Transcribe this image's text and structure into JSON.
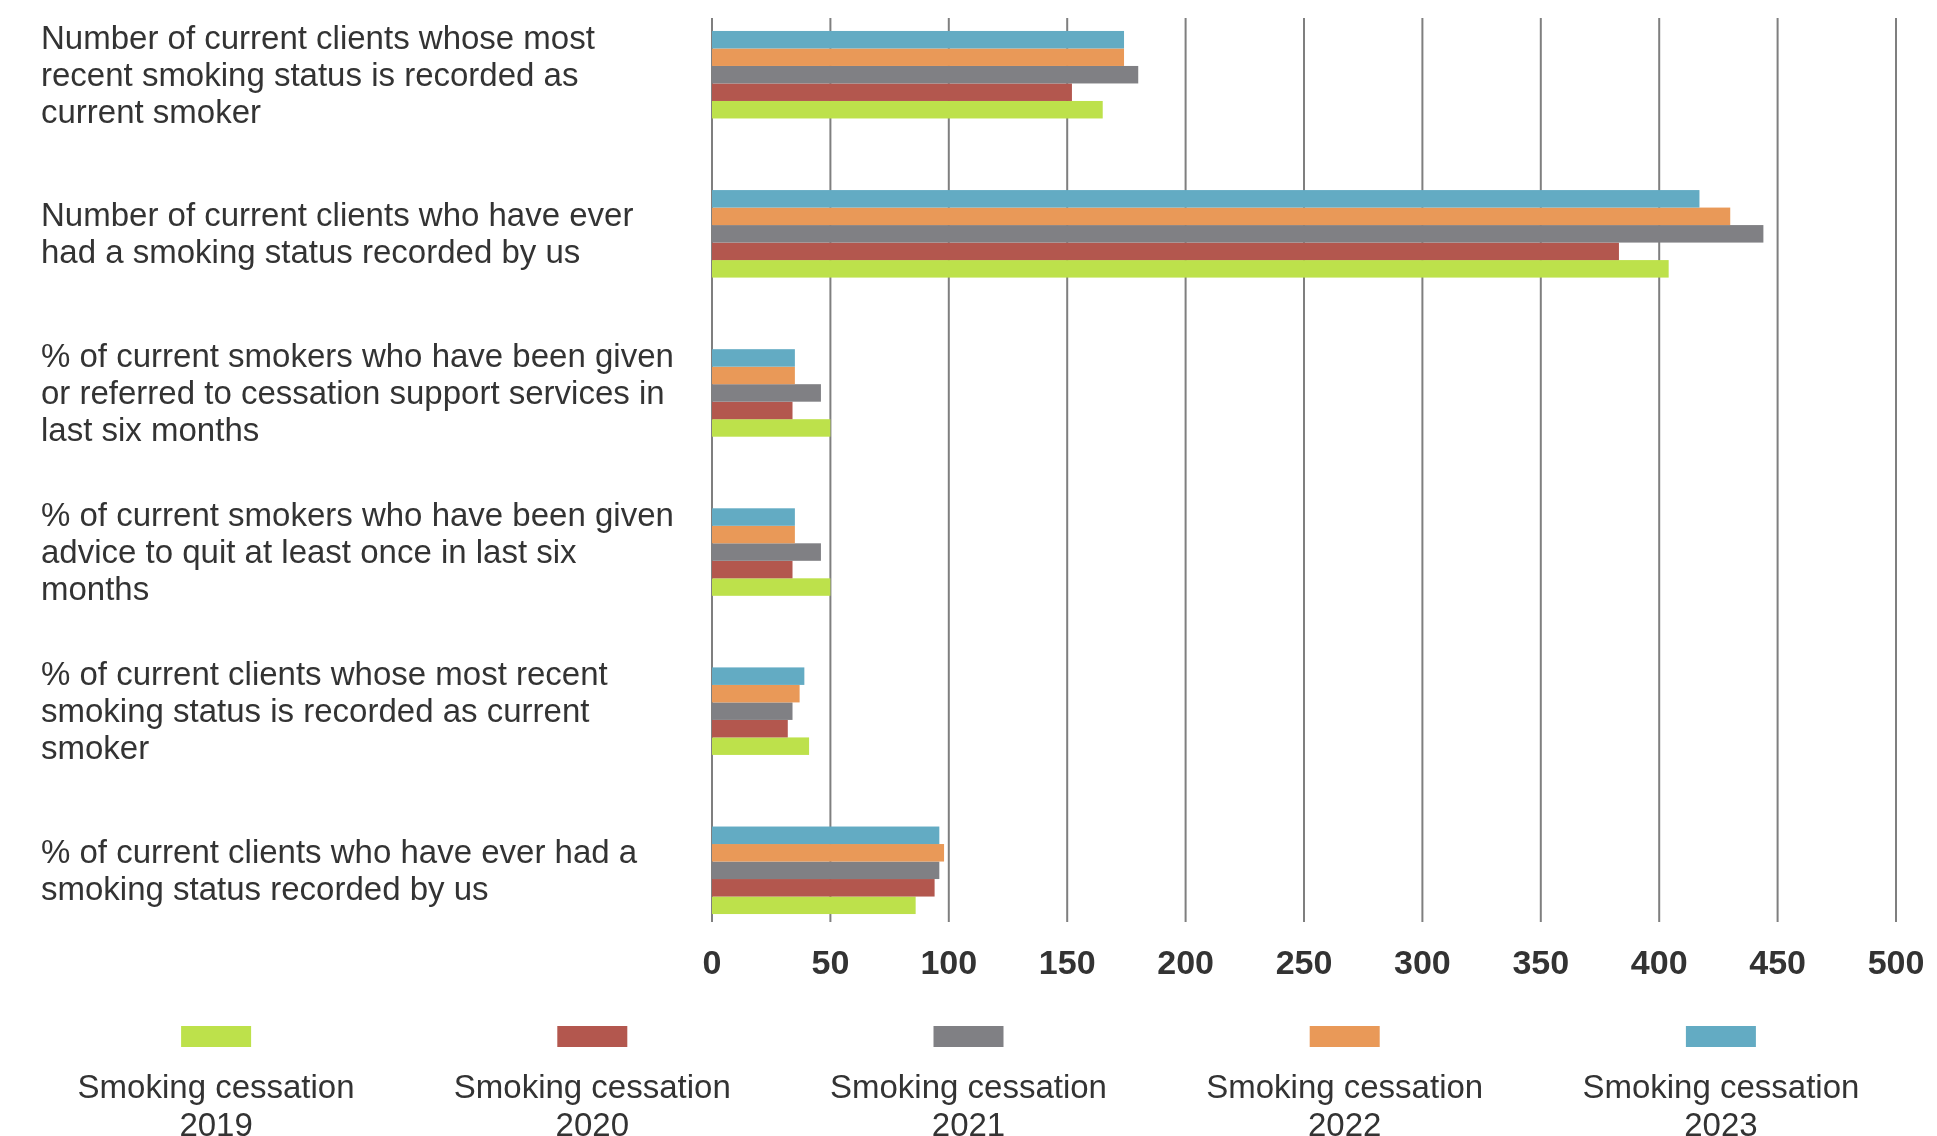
{
  "chart_data": {
    "type": "bar",
    "orientation": "horizontal",
    "categories": [
      "Number of current clients whose most recent smoking status is recorded as current smoker",
      "Number of current clients who have ever had a smoking status recorded by us",
      "% of current smokers who have been given or referred to cessation support services in last six months",
      "% of current smokers who have been given advice to quit at least once in last six months",
      "% of current clients whose most recent smoking status is recorded as current smoker",
      "% of current clients who have ever had a smoking status recorded by us"
    ],
    "series": [
      {
        "name": "Smoking cessation 2019",
        "color": "#bde14b",
        "values": [
          165,
          404,
          50,
          50,
          41,
          86
        ]
      },
      {
        "name": "Smoking cessation 2020",
        "color": "#b3574e",
        "values": [
          152,
          383,
          34,
          34,
          32,
          94
        ]
      },
      {
        "name": "Smoking cessation 2021",
        "color": "#808084",
        "values": [
          180,
          444,
          46,
          46,
          34,
          96
        ]
      },
      {
        "name": "Smoking cessation 2022",
        "color": "#e99958",
        "values": [
          174,
          430,
          35,
          35,
          37,
          98
        ]
      },
      {
        "name": "Smoking cessation 2023",
        "color": "#63abc3",
        "values": [
          174,
          417,
          35,
          35,
          39,
          96
        ]
      }
    ],
    "xlim": [
      0,
      500
    ],
    "xticks": [
      0,
      50,
      100,
      150,
      200,
      250,
      300,
      350,
      400,
      450,
      500
    ],
    "grid": "x",
    "legend": "bottom"
  }
}
